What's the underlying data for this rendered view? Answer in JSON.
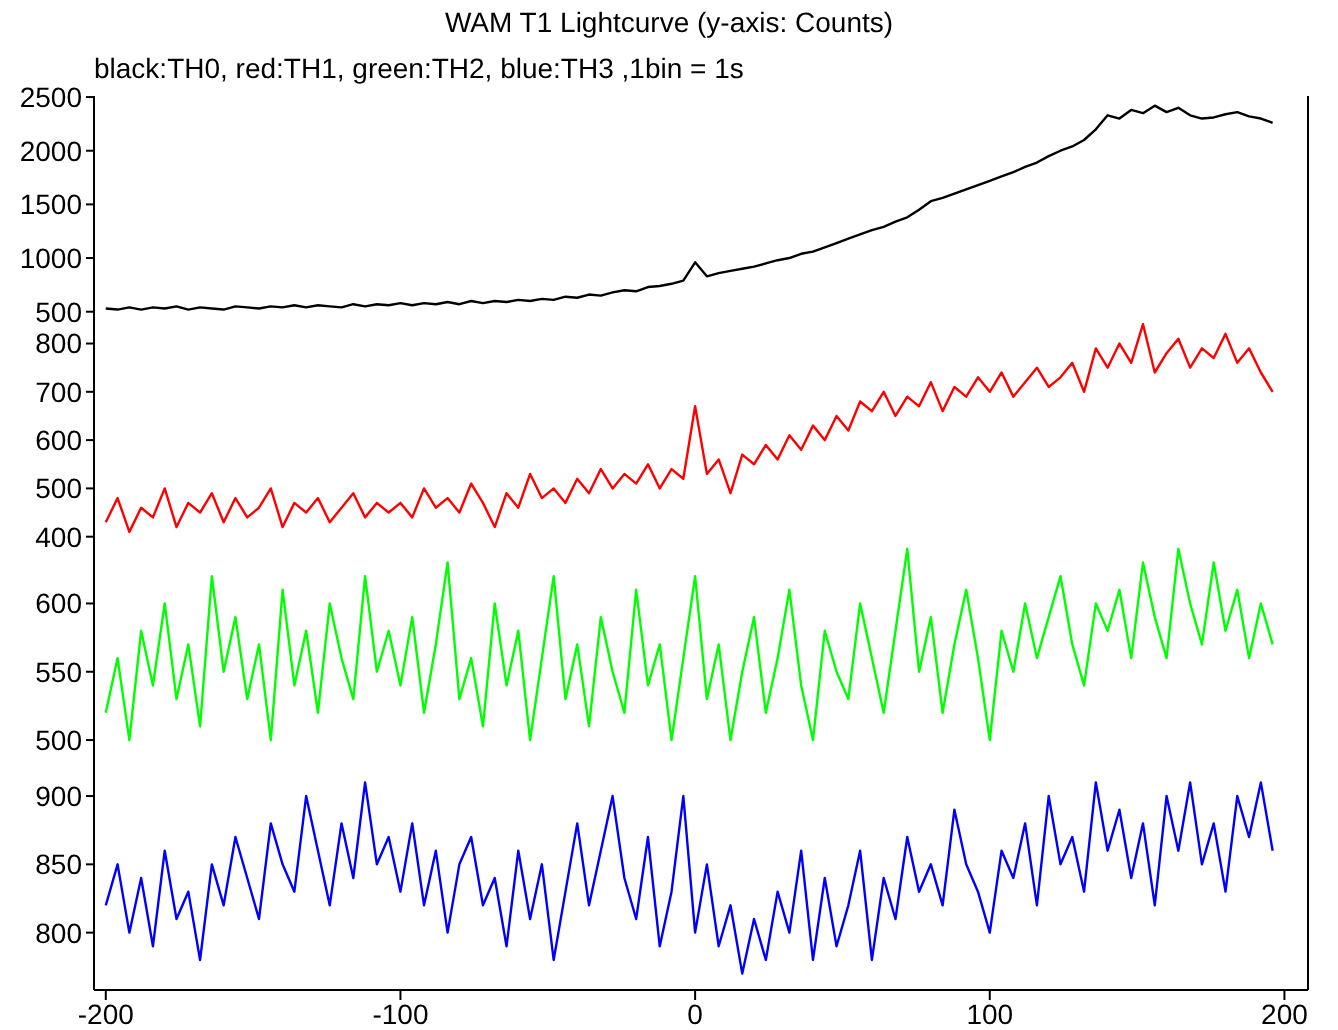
{
  "chart_data": [
    {
      "type": "line",
      "title": "WAM T1 Lightcurve (y-axis: Counts)",
      "subtitle": "black:TH0, red:TH1, green:TH2, blue:TH3 ,1bin = 1s",
      "x": [
        -200,
        -196,
        -192,
        -188,
        -184,
        -180,
        -176,
        -172,
        -168,
        -164,
        -160,
        -156,
        -152,
        -148,
        -144,
        -140,
        -136,
        -132,
        -128,
        -124,
        -120,
        -116,
        -112,
        -108,
        -104,
        -100,
        -96,
        -92,
        -88,
        -84,
        -80,
        -76,
        -72,
        -68,
        -64,
        -60,
        -56,
        -52,
        -48,
        -44,
        -40,
        -36,
        -32,
        -28,
        -24,
        -20,
        -16,
        -12,
        -8,
        -4,
        0,
        4,
        8,
        12,
        16,
        20,
        24,
        28,
        32,
        36,
        40,
        44,
        48,
        52,
        56,
        60,
        64,
        68,
        72,
        76,
        80,
        84,
        88,
        92,
        96,
        100,
        104,
        108,
        112,
        116,
        120,
        124,
        128,
        132,
        136,
        140,
        144,
        148,
        152,
        156,
        160,
        164,
        168,
        172,
        176,
        180,
        184,
        188,
        192,
        196
      ],
      "xlim": [
        -204,
        208
      ],
      "xticks": [
        -200,
        -100,
        0,
        100,
        200
      ],
      "ylim": [
        460,
        2510
      ],
      "yticks": [
        500,
        1000,
        1500,
        2000,
        2500
      ],
      "tick_labels": "y",
      "series": [
        {
          "color": "#000000",
          "values": [
            530,
            520,
            540,
            520,
            540,
            530,
            550,
            520,
            540,
            530,
            520,
            550,
            540,
            530,
            550,
            540,
            560,
            540,
            560,
            550,
            540,
            570,
            550,
            570,
            560,
            580,
            560,
            580,
            570,
            590,
            570,
            600,
            580,
            600,
            590,
            610,
            600,
            620,
            610,
            640,
            630,
            660,
            650,
            680,
            700,
            690,
            730,
            740,
            760,
            790,
            960,
            830,
            860,
            880,
            900,
            920,
            950,
            980,
            1000,
            1040,
            1060,
            1100,
            1140,
            1180,
            1220,
            1260,
            1290,
            1340,
            1380,
            1450,
            1530,
            1560,
            1600,
            1640,
            1680,
            1720,
            1760,
            1800,
            1850,
            1890,
            1950,
            2000,
            2040,
            2100,
            2200,
            2330,
            2300,
            2380,
            2350,
            2420,
            2360,
            2400,
            2330,
            2300,
            2310,
            2340,
            2360,
            2320,
            2300,
            2260
          ]
        }
      ]
    },
    {
      "type": "line",
      "x": [
        -200,
        -196,
        -192,
        -188,
        -184,
        -180,
        -176,
        -172,
        -168,
        -164,
        -160,
        -156,
        -152,
        -148,
        -144,
        -140,
        -136,
        -132,
        -128,
        -124,
        -120,
        -116,
        -112,
        -108,
        -104,
        -100,
        -96,
        -92,
        -88,
        -84,
        -80,
        -76,
        -72,
        -68,
        -64,
        -60,
        -56,
        -52,
        -48,
        -44,
        -40,
        -36,
        -32,
        -28,
        -24,
        -20,
        -16,
        -12,
        -8,
        -4,
        0,
        4,
        8,
        12,
        16,
        20,
        24,
        28,
        32,
        36,
        40,
        44,
        48,
        52,
        56,
        60,
        64,
        68,
        72,
        76,
        80,
        84,
        88,
        92,
        96,
        100,
        104,
        108,
        112,
        116,
        120,
        124,
        128,
        132,
        136,
        140,
        144,
        148,
        152,
        156,
        160,
        164,
        168,
        172,
        176,
        180,
        184,
        188,
        192,
        196
      ],
      "xlim": [
        -204,
        208
      ],
      "xticks": [
        -200,
        -100,
        0,
        100,
        200
      ],
      "ylim": [
        389,
        857
      ],
      "yticks": [
        400,
        500,
        600,
        700,
        800
      ],
      "tick_labels": "y",
      "series": [
        {
          "color": "#ff0000",
          "values": [
            430,
            480,
            410,
            460,
            440,
            500,
            420,
            470,
            450,
            490,
            430,
            480,
            440,
            460,
            500,
            420,
            470,
            450,
            480,
            430,
            460,
            490,
            440,
            470,
            450,
            470,
            440,
            500,
            460,
            480,
            450,
            510,
            470,
            420,
            490,
            460,
            530,
            480,
            500,
            470,
            520,
            490,
            540,
            500,
            530,
            510,
            550,
            500,
            540,
            520,
            670,
            530,
            560,
            490,
            570,
            550,
            590,
            560,
            610,
            580,
            630,
            600,
            650,
            620,
            680,
            660,
            700,
            650,
            690,
            670,
            720,
            660,
            710,
            690,
            730,
            700,
            740,
            690,
            720,
            750,
            710,
            730,
            760,
            700,
            790,
            750,
            800,
            760,
            840,
            740,
            780,
            810,
            750,
            790,
            770,
            820,
            760,
            790,
            740,
            700
          ]
        }
      ]
    },
    {
      "type": "line",
      "x": [
        -200,
        -196,
        -192,
        -188,
        -184,
        -180,
        -176,
        -172,
        -168,
        -164,
        -160,
        -156,
        -152,
        -148,
        -144,
        -140,
        -136,
        -132,
        -128,
        -124,
        -120,
        -116,
        -112,
        -108,
        -104,
        -100,
        -96,
        -92,
        -88,
        -84,
        -80,
        -76,
        -72,
        -68,
        -64,
        -60,
        -56,
        -52,
        -48,
        -44,
        -40,
        -36,
        -32,
        -28,
        -24,
        -20,
        -16,
        -12,
        -8,
        -4,
        0,
        4,
        8,
        12,
        16,
        20,
        24,
        28,
        32,
        36,
        40,
        44,
        48,
        52,
        56,
        60,
        64,
        68,
        72,
        76,
        80,
        84,
        88,
        92,
        96,
        100,
        104,
        108,
        112,
        116,
        120,
        124,
        128,
        132,
        136,
        140,
        144,
        148,
        152,
        156,
        160,
        164,
        168,
        172,
        176,
        180,
        184,
        188,
        192,
        196
      ],
      "xlim": [
        -204,
        208
      ],
      "xticks": [
        -200,
        -100,
        0,
        100,
        200
      ],
      "ylim": [
        481,
        645
      ],
      "yticks": [
        500,
        550,
        600
      ],
      "tick_labels": "y",
      "series": [
        {
          "color": "#00ff00",
          "values": [
            520,
            560,
            500,
            580,
            540,
            600,
            530,
            570,
            510,
            620,
            550,
            590,
            530,
            570,
            500,
            610,
            540,
            580,
            520,
            600,
            560,
            530,
            620,
            550,
            580,
            540,
            590,
            520,
            570,
            630,
            530,
            560,
            510,
            600,
            540,
            580,
            500,
            560,
            620,
            530,
            570,
            510,
            590,
            550,
            520,
            610,
            540,
            570,
            500,
            560,
            620,
            530,
            570,
            500,
            550,
            590,
            520,
            560,
            610,
            540,
            500,
            580,
            550,
            530,
            600,
            560,
            520,
            580,
            640,
            550,
            590,
            520,
            570,
            610,
            560,
            500,
            580,
            550,
            600,
            560,
            590,
            620,
            570,
            540,
            600,
            580,
            610,
            560,
            630,
            590,
            560,
            640,
            600,
            570,
            630,
            580,
            610,
            560,
            600,
            570
          ]
        }
      ]
    },
    {
      "type": "line",
      "x": [
        -200,
        -196,
        -192,
        -188,
        -184,
        -180,
        -176,
        -172,
        -168,
        -164,
        -160,
        -156,
        -152,
        -148,
        -144,
        -140,
        -136,
        -132,
        -128,
        -124,
        -120,
        -116,
        -112,
        -108,
        -104,
        -100,
        -96,
        -92,
        -88,
        -84,
        -80,
        -76,
        -72,
        -68,
        -64,
        -60,
        -56,
        -52,
        -48,
        -44,
        -40,
        -36,
        -32,
        -28,
        -24,
        -20,
        -16,
        -12,
        -8,
        -4,
        0,
        4,
        8,
        12,
        16,
        20,
        24,
        28,
        32,
        36,
        40,
        44,
        48,
        52,
        56,
        60,
        64,
        68,
        72,
        76,
        80,
        84,
        88,
        92,
        96,
        100,
        104,
        108,
        112,
        116,
        120,
        124,
        128,
        132,
        136,
        140,
        144,
        148,
        152,
        156,
        160,
        164,
        168,
        172,
        176,
        180,
        184,
        188,
        192,
        196
      ],
      "xlim": [
        -204,
        208
      ],
      "xticks": [
        -200,
        -100,
        0,
        100,
        200
      ],
      "ylim": [
        758,
        922
      ],
      "yticks": [
        800,
        850,
        900
      ],
      "series": [
        {
          "color": "#0000ff",
          "values": [
            820,
            850,
            800,
            840,
            790,
            860,
            810,
            830,
            780,
            850,
            820,
            870,
            840,
            810,
            880,
            850,
            830,
            900,
            860,
            820,
            880,
            840,
            910,
            850,
            870,
            830,
            880,
            820,
            860,
            800,
            850,
            870,
            820,
            840,
            790,
            860,
            810,
            850,
            780,
            830,
            880,
            820,
            860,
            900,
            840,
            810,
            870,
            790,
            830,
            900,
            800,
            850,
            790,
            820,
            770,
            810,
            780,
            830,
            800,
            860,
            780,
            840,
            790,
            820,
            860,
            780,
            840,
            810,
            870,
            830,
            850,
            820,
            890,
            850,
            830,
            800,
            860,
            840,
            880,
            820,
            900,
            850,
            870,
            830,
            910,
            860,
            890,
            840,
            880,
            820,
            900,
            860,
            910,
            850,
            880,
            830,
            900,
            870,
            910,
            860
          ]
        }
      ]
    }
  ]
}
